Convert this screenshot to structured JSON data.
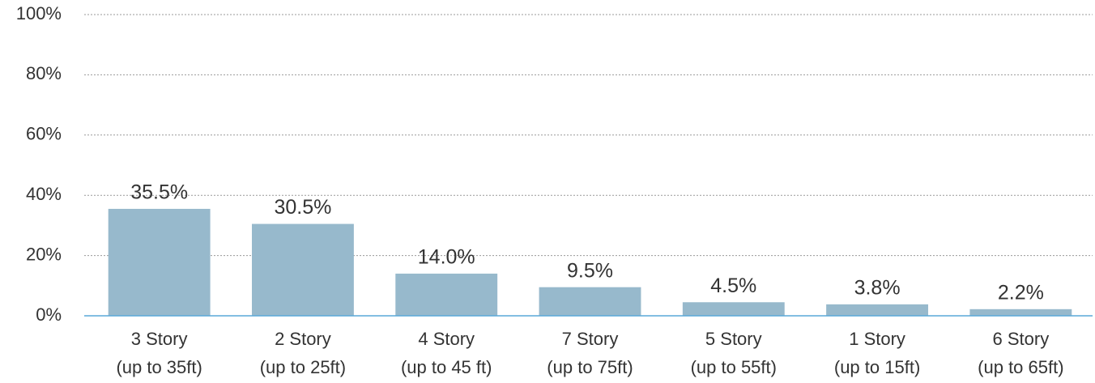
{
  "chart_data": {
    "type": "bar",
    "categories": [
      [
        "3 Story",
        "(up to 35ft)"
      ],
      [
        "2 Story",
        "(up to 25ft)"
      ],
      [
        "4 Story",
        "(up to 45 ft)"
      ],
      [
        "7 Story",
        "(up to 75ft)"
      ],
      [
        "5 Story",
        "(up to 55ft)"
      ],
      [
        "1 Story",
        "(up to 15ft)"
      ],
      [
        "6 Story",
        "(up to 65ft)"
      ]
    ],
    "values": [
      35.5,
      30.5,
      14.0,
      9.5,
      4.5,
      3.8,
      2.2
    ],
    "value_labels": [
      "35.5%",
      "30.5%",
      "14.0%",
      "9.5%",
      "4.5%",
      "3.8%",
      "2.2%"
    ],
    "color": "#97b9cc",
    "ylim": [
      0,
      100
    ],
    "yticks": [
      {
        "value": 0,
        "label": "0%"
      },
      {
        "value": 20,
        "label": "20%"
      },
      {
        "value": 40,
        "label": "40%"
      },
      {
        "value": 60,
        "label": "60%"
      },
      {
        "value": 80,
        "label": "80%"
      },
      {
        "value": 100,
        "label": "100%"
      }
    ],
    "grid": true
  }
}
